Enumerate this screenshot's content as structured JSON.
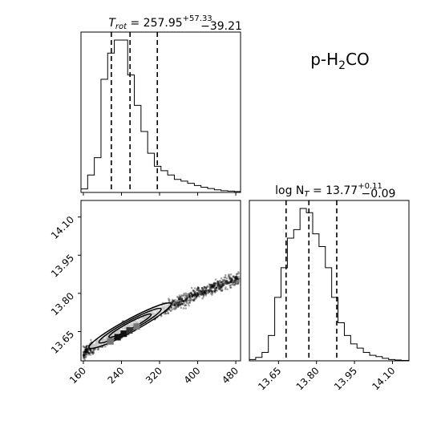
{
  "chart_data": [
    {
      "type": "histogram",
      "panel": "T_rot marginal",
      "title_prefix": "T",
      "title_sub": "rot",
      "title_value": " = 257.95",
      "title_plus": "+57.33",
      "title_minus": "−39.21",
      "xlim": [
        155,
        490
      ],
      "bin_edges": [
        155,
        169,
        183,
        197,
        211,
        225,
        239,
        253,
        267,
        281,
        295,
        309,
        323,
        337,
        351,
        365,
        379,
        393,
        407,
        421,
        435,
        449,
        463,
        477,
        490
      ],
      "counts": [
        0.8,
        4,
        8,
        26,
        32,
        35,
        35,
        27,
        20,
        14,
        9,
        6,
        5,
        4,
        3,
        2.6,
        2.1,
        1.6,
        1.2,
        0.9,
        0.6,
        0.4,
        0.3,
        0.2
      ],
      "quantiles": [
        218.74,
        257.95,
        315.28
      ],
      "xticks": [
        160,
        240,
        320,
        400,
        480
      ]
    },
    {
      "type": "scatter",
      "panel": "T_rot vs log N_T",
      "xlim": [
        155,
        490
      ],
      "ylim": [
        13.535,
        14.165
      ],
      "xticks": [
        160,
        240,
        320,
        400,
        480
      ],
      "xtick_labels": [
        "160",
        "240",
        "320",
        "400",
        "480"
      ],
      "yticks": [
        13.65,
        13.8,
        13.95,
        14.1
      ],
      "ytick_labels": [
        "13.65",
        "13.80",
        "13.95",
        "14.10"
      ],
      "xlabel": "",
      "ylabel": "",
      "trend": {
        "t0": 160,
        "logn0": 13.565,
        "slope": 0.00119,
        "curve": -9e-07
      }
    },
    {
      "type": "histogram",
      "panel": "log N_T marginal",
      "title_prefix": "log N",
      "title_sub": "T",
      "title_value": " = 13.77",
      "title_plus": "+0.11",
      "title_minus": "−0.09",
      "xlim": [
        13.535,
        14.165
      ],
      "bin_edges": [
        13.535,
        13.56,
        13.585,
        13.61,
        13.635,
        13.66,
        13.685,
        13.71,
        13.735,
        13.76,
        13.785,
        13.81,
        13.835,
        13.86,
        13.885,
        13.91,
        13.935,
        13.96,
        13.985,
        14.01,
        14.035,
        14.06,
        14.085,
        14.11,
        14.135,
        14.165
      ],
      "counts": [
        0.3,
        0.8,
        2,
        6,
        15,
        22,
        29,
        31,
        36,
        35,
        30,
        27,
        22,
        15,
        9,
        6,
        4,
        3,
        2,
        1.3,
        1,
        0.6,
        0.3,
        0.2,
        0.1
      ],
      "quantiles": [
        13.68,
        13.77,
        13.88
      ],
      "xticks": [
        13.65,
        13.8,
        13.95,
        14.1
      ],
      "xtick_labels": [
        "13.65",
        "13.80",
        "13.95",
        "14.10"
      ]
    }
  ],
  "molecule_label": {
    "prefix": "p-H",
    "subscript": "2",
    "suffix": "CO"
  }
}
